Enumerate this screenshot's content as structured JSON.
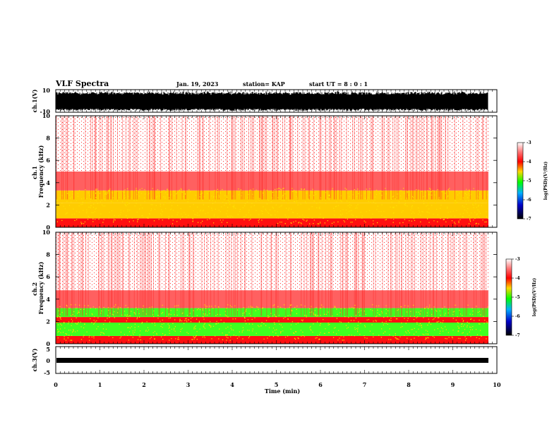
{
  "header": {
    "title": "VLF Spectra",
    "date": "Jan. 19, 2023",
    "station": "station= KAP",
    "start": "start UT = 8 : 0 : 1"
  },
  "colors": {
    "colorbar_stops": [
      "#ffffff",
      "#ff3a3a",
      "#ff0000",
      "#ffd800",
      "#00ff00",
      "#00a0ff",
      "#0000c0",
      "#000000"
    ]
  },
  "chart_data": [
    {
      "type": "line",
      "ylabel": "ch.1(V)",
      "ylim": [
        -10,
        10
      ],
      "yticks": [
        "10",
        "-10"
      ],
      "xlim": [
        0,
        10
      ],
      "description_values": "dense waveform filling most of range"
    },
    {
      "type": "heatmap",
      "ylabel": "ch.1 Frequency (kHz)",
      "ylim": [
        0,
        10
      ],
      "yticks": [
        "0",
        "2",
        "4",
        "6",
        "8",
        "10"
      ],
      "xlim": [
        0,
        10
      ],
      "colorbar": {
        "label": "log(PSD)(V²/Hz)",
        "range": [
          -7,
          -3
        ],
        "ticks": [
          "-3",
          "-4",
          "-5",
          "-6",
          "-7"
        ]
      },
      "bands": [
        {
          "f_low": 0.0,
          "f_high": 0.8,
          "level": -4.2
        },
        {
          "f_low": 0.8,
          "f_high": 2.2,
          "level": -4.6
        },
        {
          "f_low": 2.2,
          "f_high": 3.3,
          "level": -4.4
        },
        {
          "f_low": 3.3,
          "f_high": 5.0,
          "level": -3.8
        },
        {
          "f_low": 5.0,
          "f_high": 10.0,
          "level": -3.3
        }
      ]
    },
    {
      "type": "heatmap",
      "ylabel": "ch.2 Frequency (kHz)",
      "ylim": [
        0,
        10
      ],
      "yticks": [
        "0",
        "2",
        "4",
        "6",
        "8",
        "10"
      ],
      "xlim": [
        0,
        10
      ],
      "colorbar": {
        "label": "log(PSD)(V²/Hz)",
        "range": [
          -7,
          -3
        ],
        "ticks": [
          "-3",
          "-4",
          "-5",
          "-6",
          "-7"
        ]
      },
      "bands": [
        {
          "f_low": 0.0,
          "f_high": 0.7,
          "level": -4.3
        },
        {
          "f_low": 0.7,
          "f_high": 1.9,
          "level": -5.0
        },
        {
          "f_low": 1.9,
          "f_high": 2.4,
          "level": -4.3
        },
        {
          "f_low": 2.4,
          "f_high": 3.2,
          "level": -4.9
        },
        {
          "f_low": 3.2,
          "f_high": 4.8,
          "level": -3.9
        },
        {
          "f_low": 4.8,
          "f_high": 10.0,
          "level": -3.3
        }
      ]
    },
    {
      "type": "line",
      "ylabel": "ch.3(V)",
      "ylim": [
        -5,
        5
      ],
      "yticks": [
        "5",
        "0",
        "-5"
      ],
      "xlim": [
        0,
        10
      ],
      "xlabel": "Time (min)",
      "xticks": [
        "0",
        "1",
        "2",
        "3",
        "4",
        "5",
        "6",
        "7",
        "8",
        "9",
        "10"
      ],
      "band": [
        -0.6,
        0.6
      ]
    }
  ]
}
